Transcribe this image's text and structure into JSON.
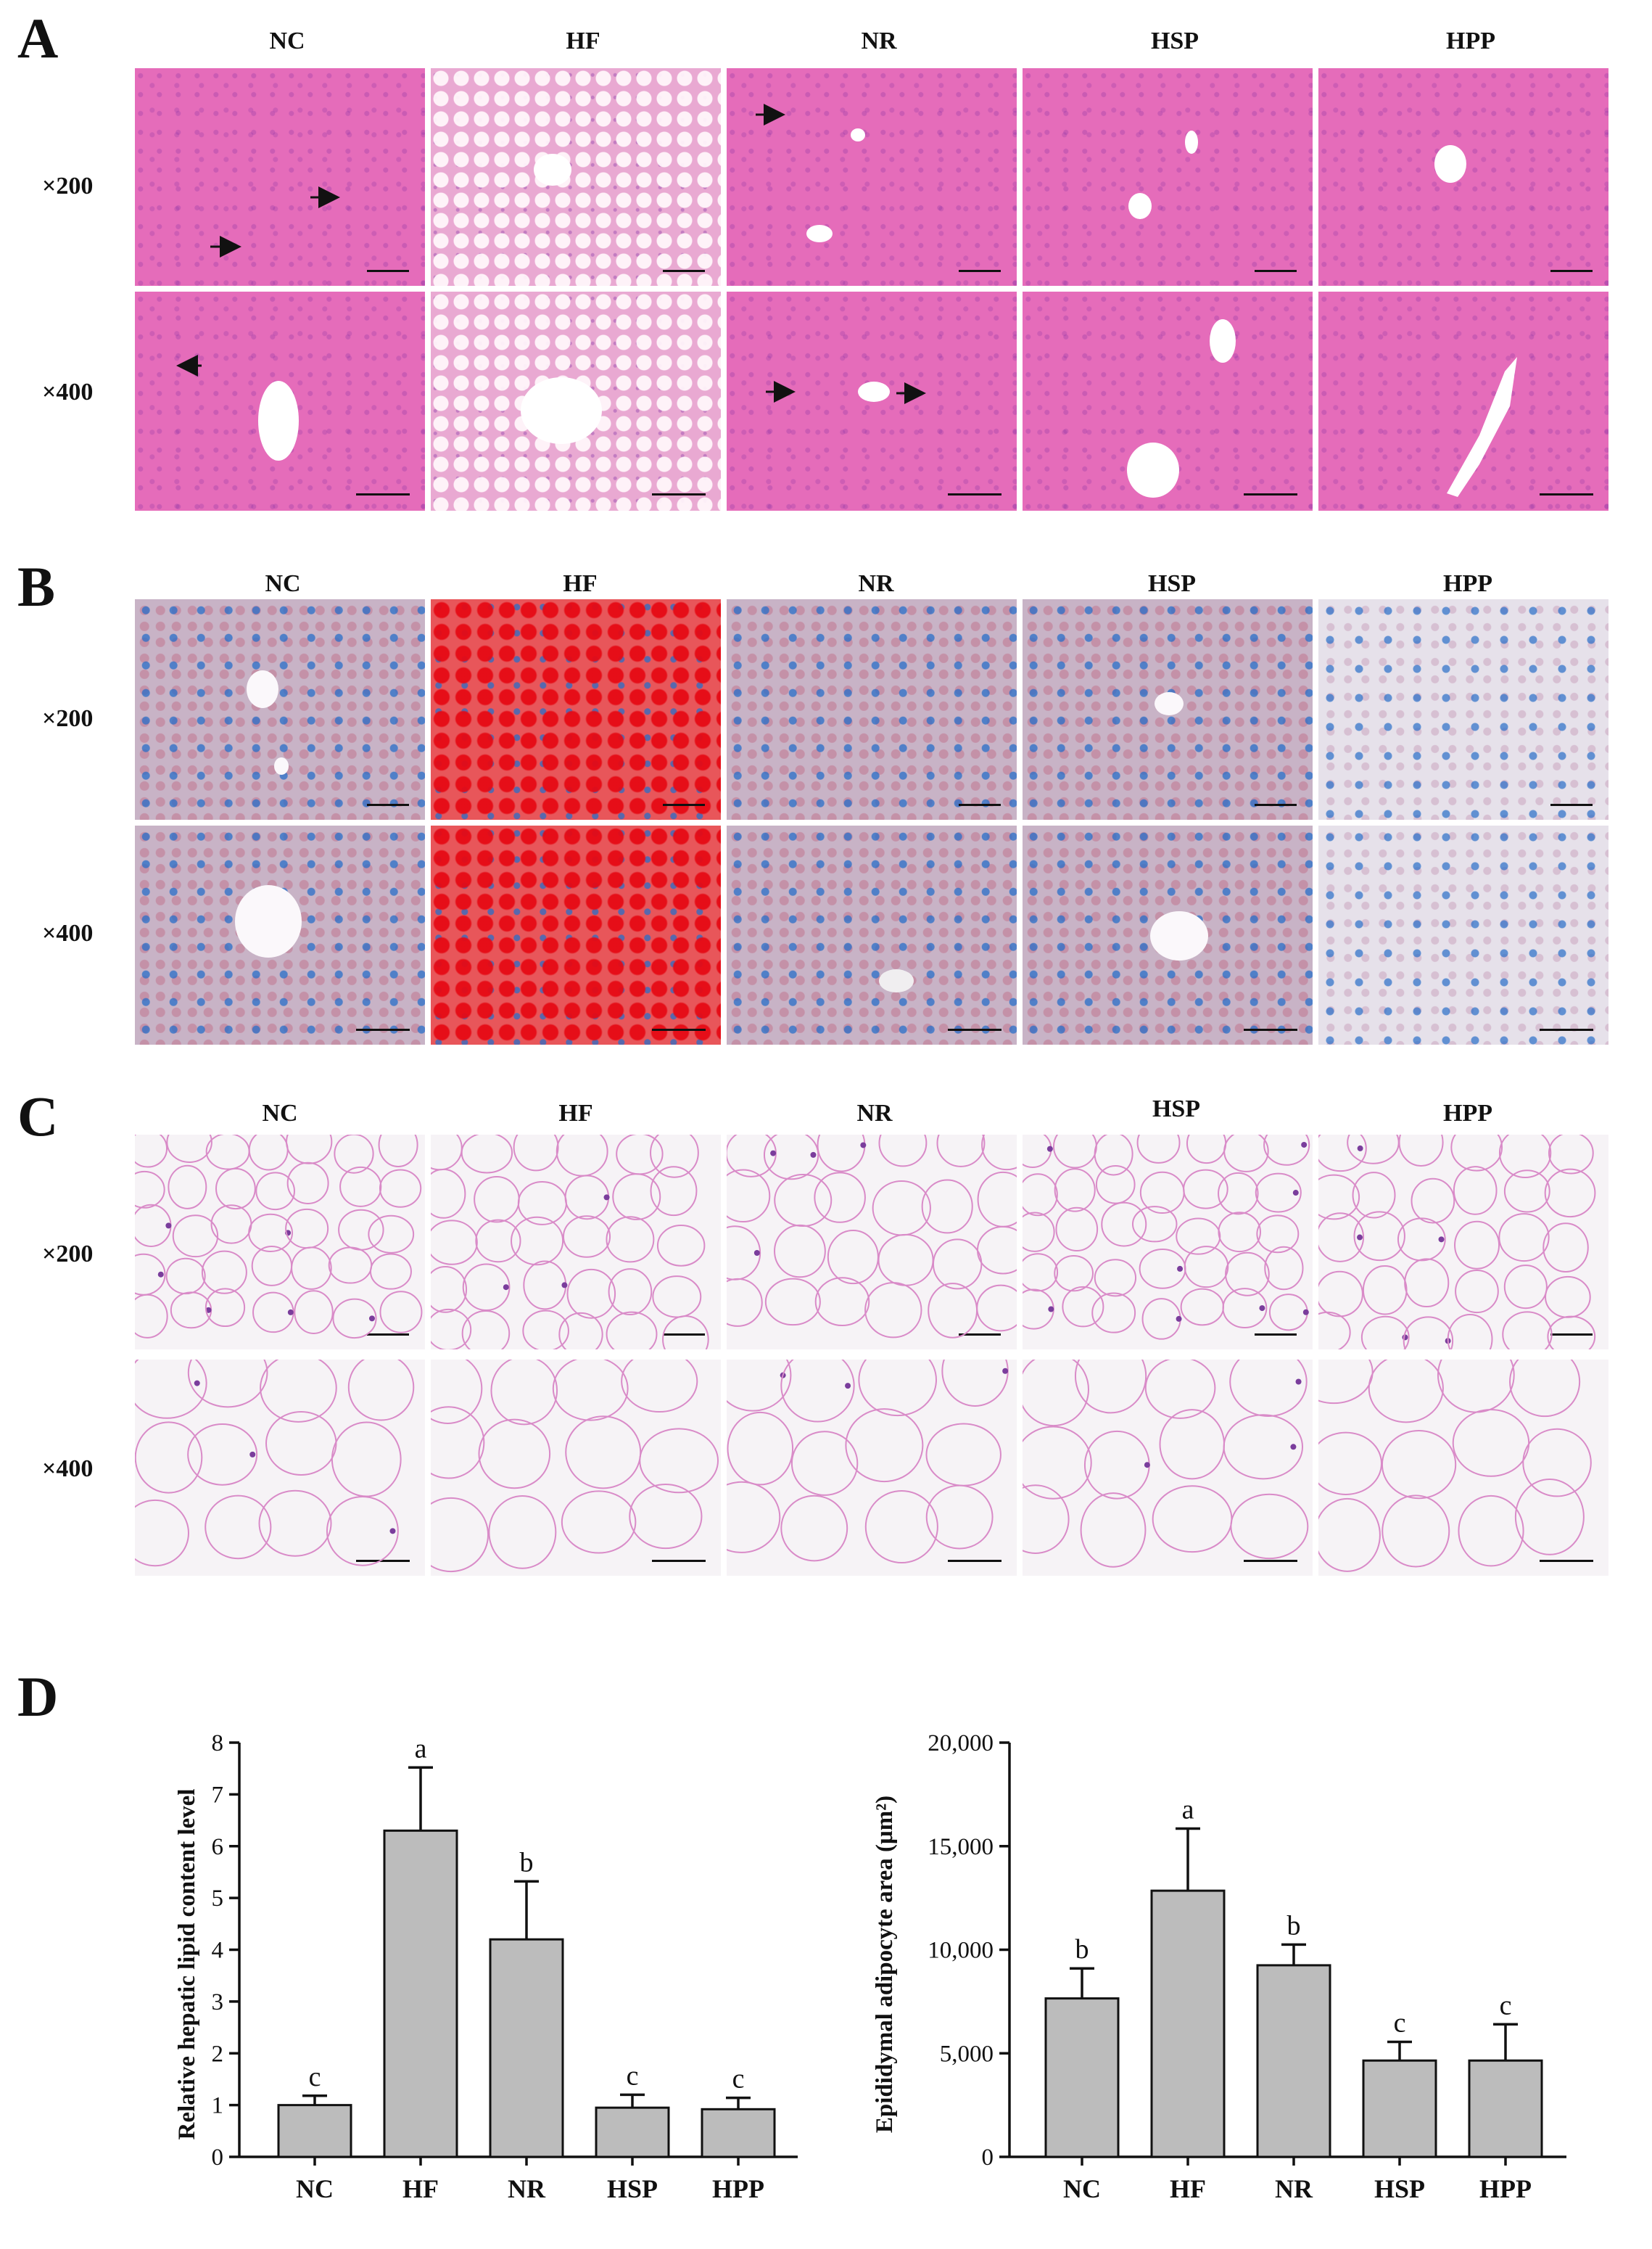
{
  "panels": {
    "A": {
      "letter": "A",
      "cols": [
        "NC",
        "HF",
        "NR",
        "HSP",
        "HPP"
      ],
      "rows": [
        "×200",
        "×400"
      ]
    },
    "B": {
      "letter": "B",
      "cols": [
        "NC",
        "HF",
        "NR",
        "HSP",
        "HPP"
      ],
      "rows": [
        "×200",
        "×400"
      ]
    },
    "C": {
      "letter": "C",
      "cols": [
        "NC",
        "HF",
        "NR",
        "HSP",
        "HPP"
      ],
      "rows": [
        "×200",
        "×400"
      ]
    },
    "D": {
      "letter": "D"
    }
  },
  "chart_data": [
    {
      "type": "bar",
      "categories": [
        "NC",
        "HF",
        "NR",
        "HSP",
        "HPP"
      ],
      "values": [
        1.0,
        6.3,
        4.2,
        0.95,
        0.92
      ],
      "errors": [
        0.18,
        1.22,
        1.12,
        0.25,
        0.22
      ],
      "significance": [
        "c",
        "a",
        "b",
        "c",
        "c"
      ],
      "ylabel": "Relative hepatic lipid content level",
      "ylim": [
        0,
        8
      ],
      "yticks": [
        "0",
        "1",
        "2",
        "3",
        "4",
        "5",
        "6",
        "7",
        "8"
      ],
      "tick_values": [
        0,
        1,
        2,
        3,
        4,
        5,
        6,
        7,
        8
      ],
      "bar_color": "#bcbcbc"
    },
    {
      "type": "bar",
      "categories": [
        "NC",
        "HF",
        "NR",
        "HSP",
        "HPP"
      ],
      "values": [
        7650,
        12850,
        9250,
        4650,
        4650
      ],
      "errors": [
        1450,
        3000,
        1000,
        900,
        1750
      ],
      "significance": [
        "b",
        "a",
        "b",
        "c",
        "c"
      ],
      "ylabel": "Epididymal adipocyte area (μm²)",
      "ylim": [
        0,
        20000
      ],
      "yticks": [
        "0",
        "5,000",
        "10,000",
        "15,000",
        "20,000"
      ],
      "tick_values": [
        0,
        5000,
        10000,
        15000,
        20000
      ],
      "bar_color": "#bcbcbc"
    }
  ]
}
